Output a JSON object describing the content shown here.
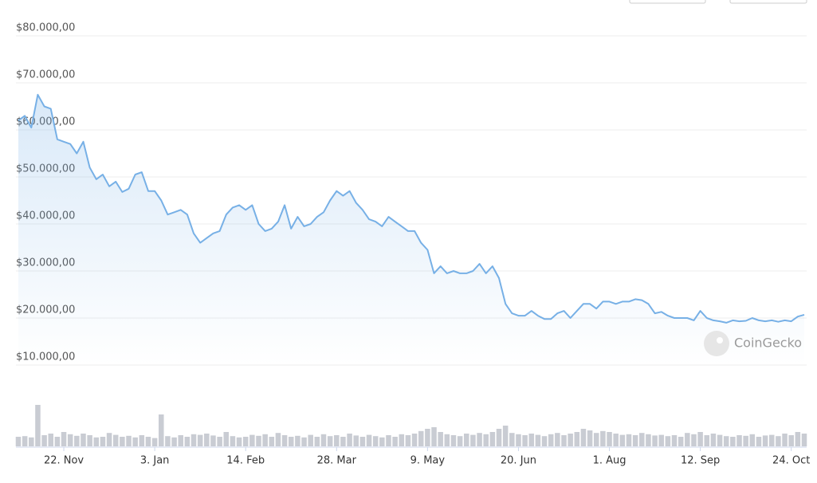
{
  "chart_data": {
    "type": "line",
    "categories": [
      null,
      null,
      null,
      null,
      null,
      null,
      null,
      "22. Nov",
      null,
      null,
      null,
      null,
      null,
      null,
      null,
      null,
      null,
      null,
      null,
      null,
      null,
      "3. Jan",
      null,
      null,
      null,
      null,
      null,
      null,
      null,
      null,
      null,
      null,
      null,
      null,
      null,
      "14. Feb",
      null,
      null,
      null,
      null,
      null,
      null,
      null,
      null,
      null,
      null,
      null,
      null,
      null,
      "28. Mar",
      null,
      null,
      null,
      null,
      null,
      null,
      null,
      null,
      null,
      null,
      null,
      null,
      null,
      "9. May",
      null,
      null,
      null,
      null,
      null,
      null,
      null,
      null,
      null,
      null,
      null,
      null,
      null,
      "20. Jun",
      null,
      null,
      null,
      null,
      null,
      null,
      null,
      null,
      null,
      null,
      null,
      null,
      null,
      "1. Aug",
      null,
      null,
      null,
      null,
      null,
      null,
      null,
      null,
      null,
      null,
      null,
      null,
      null,
      "12. Sep",
      null,
      null,
      null,
      null,
      null,
      null,
      null,
      null,
      null,
      null,
      null,
      null,
      null,
      "24. Oct",
      null,
      null
    ],
    "series": [
      {
        "color": "#77b0e6",
        "values": [
          62000,
          63000,
          60500,
          67500,
          65000,
          64500,
          58000,
          57500,
          57000,
          55000,
          57500,
          52000,
          49500,
          50500,
          48000,
          49000,
          46800,
          47500,
          50500,
          51000,
          47000,
          47000,
          45000,
          42000,
          42500,
          43000,
          42000,
          38000,
          36000,
          37000,
          38000,
          38500,
          42000,
          43500,
          44000,
          43000,
          44000,
          40000,
          38500,
          39000,
          40500,
          44000,
          39000,
          41500,
          39500,
          40000,
          41500,
          42500,
          45000,
          47000,
          46000,
          47000,
          44500,
          43000,
          41000,
          40500,
          39500,
          41500,
          40500,
          39500,
          38500,
          38500,
          36000,
          34500,
          29500,
          31000,
          29500,
          30000,
          29500,
          29500,
          30000,
          31500,
          29500,
          31000,
          28500,
          23000,
          21000,
          20500,
          20500,
          21500,
          20500,
          19800,
          19800,
          21000,
          21500,
          20000,
          21500,
          23000,
          23000,
          22000,
          23500,
          23500,
          23000,
          23500,
          23500,
          24000,
          23800,
          23000,
          21000,
          21300,
          20500,
          20000,
          20000,
          20000,
          19500,
          21500,
          20000,
          19500,
          19300,
          19000,
          19500,
          19300,
          19400,
          20000,
          19500,
          19300,
          19500,
          19200,
          19500,
          19300,
          20300,
          20700
        ]
      },
      {
        "type": "bar",
        "axis": "y2",
        "color": "#c9ccd3",
        "values": [
          30,
          32,
          28,
          130,
          35,
          40,
          30,
          45,
          38,
          33,
          40,
          35,
          28,
          30,
          42,
          36,
          30,
          33,
          28,
          35,
          30,
          26,
          100,
          32,
          28,
          35,
          30,
          38,
          36,
          40,
          34,
          30,
          45,
          32,
          28,
          30,
          36,
          33,
          38,
          30,
          42,
          35,
          30,
          33,
          28,
          36,
          30,
          38,
          32,
          35,
          30,
          40,
          34,
          30,
          36,
          32,
          28,
          35,
          30,
          38,
          35,
          40,
          48,
          55,
          60,
          45,
          38,
          35,
          32,
          40,
          36,
          42,
          38,
          45,
          55,
          65,
          42,
          38,
          35,
          40,
          36,
          32,
          38,
          42,
          35,
          40,
          45,
          55,
          50,
          42,
          48,
          45,
          40,
          36,
          38,
          35,
          42,
          38,
          34,
          36,
          32,
          35,
          30,
          42,
          38,
          45,
          35,
          40,
          36,
          32,
          30,
          35,
          33,
          38,
          30,
          34,
          36,
          32,
          40,
          35,
          45,
          40
        ]
      }
    ],
    "ylim": [
      10000,
      80000
    ],
    "yticks": [
      {
        "value": 10000,
        "label": "$10.000,00"
      },
      {
        "value": 20000,
        "label": "$20.000,00"
      },
      {
        "value": 30000,
        "label": "$30.000,00"
      },
      {
        "value": 40000,
        "label": "$40.000,00"
      },
      {
        "value": 50000,
        "label": "$50.000,00"
      },
      {
        "value": 60000,
        "label": "$60.000,00"
      },
      {
        "value": 70000,
        "label": "$70.000,00"
      },
      {
        "value": 80000,
        "label": "$80.000,00"
      }
    ],
    "y2lim": [
      0,
      150
    ],
    "grid": true,
    "watermark": "CoinGecko"
  }
}
